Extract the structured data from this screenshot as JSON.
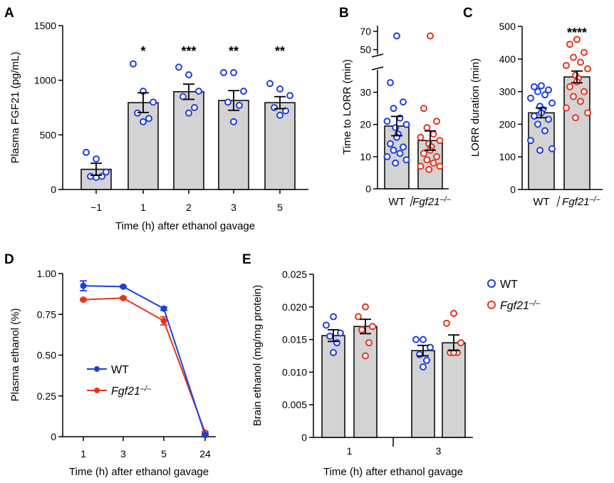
{
  "chart_data": [
    {
      "panel": "A",
      "type": "bar",
      "xlabel": "Time (h) after ethanol gavage",
      "ylabel": "Plasma FGF21 (pg/mL)",
      "ylim": [
        0,
        1500
      ],
      "yticks": [
        "0",
        "500",
        "1000",
        "1500"
      ],
      "categories": [
        "−1",
        "1",
        "2",
        "3",
        "5"
      ],
      "values": [
        185,
        795,
        895,
        815,
        795
      ],
      "sem": [
        55,
        90,
        70,
        90,
        55
      ],
      "points": [
        [
          340,
          280,
          160,
          120,
          120,
          110
        ],
        [
          1150,
          900,
          800,
          700,
          650,
          620
        ],
        [
          1120,
          1050,
          900,
          850,
          750,
          700
        ],
        [
          1070,
          1070,
          900,
          800,
          770,
          620
        ],
        [
          970,
          920,
          860,
          750,
          720,
          680
        ]
      ],
      "significance": [
        "",
        "*",
        "***",
        "**",
        "**"
      ],
      "colors": {
        "bar": "#d3d3d3",
        "points": "#1f3fe0"
      }
    },
    {
      "panel": "B",
      "type": "bar",
      "ylabel": "Time to LORR (min)",
      "yticks": [
        "0",
        "10",
        "20",
        "30",
        "50",
        "70"
      ],
      "categories": [
        "WT",
        "Fgf21–/–"
      ],
      "values": [
        19.5,
        15
      ],
      "sem": [
        3,
        3
      ],
      "points": [
        [
          65,
          33,
          27,
          25,
          22,
          21,
          20,
          19,
          17,
          16,
          14,
          13,
          12,
          11,
          10,
          9,
          8
        ],
        [
          65,
          25,
          21,
          19,
          17,
          16,
          15,
          14,
          13,
          12,
          11,
          10,
          9,
          8,
          7,
          7,
          6
        ]
      ],
      "colors": {
        "bar": "#d3d3d3",
        "WT": "#1f3fe0",
        "KO": "#e8341c"
      }
    },
    {
      "panel": "C",
      "type": "bar",
      "ylabel": "LORR duration (min)",
      "ylim": [
        0,
        500
      ],
      "yticks": [
        "0",
        "100",
        "200",
        "300",
        "400",
        "500"
      ],
      "categories": [
        "WT",
        "Fgf21–/–"
      ],
      "values": [
        235,
        345
      ],
      "sem": [
        15,
        18
      ],
      "points": [
        [
          318,
          315,
          305,
          300,
          290,
          280,
          265,
          255,
          245,
          235,
          225,
          215,
          200,
          180,
          150,
          125,
          120
        ],
        [
          460,
          445,
          420,
          405,
          390,
          380,
          370,
          350,
          340,
          330,
          315,
          300,
          285,
          270,
          250,
          235,
          220
        ]
      ],
      "significance": [
        "",
        "****"
      ],
      "colors": {
        "bar": "#d3d3d3",
        "WT": "#1f3fe0",
        "KO": "#e8341c"
      }
    },
    {
      "panel": "D",
      "type": "line",
      "xlabel": "Time (h) after ethanol gavage",
      "ylabel": "Plasma ethanol (%)",
      "ylim": [
        0,
        1.0
      ],
      "yticks": [
        "0",
        "0.25",
        "0.50",
        "0.75",
        "1.00"
      ],
      "categories": [
        "1",
        "3",
        "5",
        "24"
      ],
      "series": [
        {
          "name": "WT",
          "values": [
            0.925,
            0.92,
            0.785,
            0.01
          ],
          "err": [
            0.03,
            0.005,
            0.01,
            0.005
          ],
          "color": "#1f3fe0"
        },
        {
          "name": "Fgf21–/–",
          "values": [
            0.84,
            0.85,
            0.71,
            0.025
          ],
          "err": [
            0.005,
            0.005,
            0.025,
            0.005
          ],
          "color": "#e8341c"
        }
      ]
    },
    {
      "panel": "E",
      "type": "bar",
      "xlabel": "Time (h) after ethanol gavage",
      "ylabel": "Brain ethanol (mg/mg protein)",
      "ylim": [
        0,
        0.025
      ],
      "yticks": [
        "0",
        "0.005",
        "0.010",
        "0.015",
        "0.020",
        "0.025"
      ],
      "categories": [
        "1",
        "3"
      ],
      "series": [
        {
          "name": "WT",
          "values": [
            0.0156,
            0.0133
          ],
          "sem": [
            0.0009,
            0.0008
          ],
          "color": "#1f3fe0",
          "points": [
            [
              0.0185,
              0.0172,
              0.016,
              0.0155,
              0.0145,
              0.013
            ],
            [
              0.015,
              0.015,
              0.0138,
              0.0127,
              0.0118,
              0.0108
            ]
          ]
        },
        {
          "name": "Fgf21–/–",
          "values": [
            0.017,
            0.0145
          ],
          "sem": [
            0.0011,
            0.0012
          ],
          "color": "#e8341c",
          "points": [
            [
              0.02,
              0.0185,
              0.017,
              0.0165,
              0.0145,
              0.0125
            ],
            [
              0.019,
              0.0175,
              0.0145,
              0.013,
              0.013,
              0.013
            ]
          ]
        }
      ],
      "legend": [
        "WT",
        "Fgf21–/–"
      ]
    }
  ]
}
